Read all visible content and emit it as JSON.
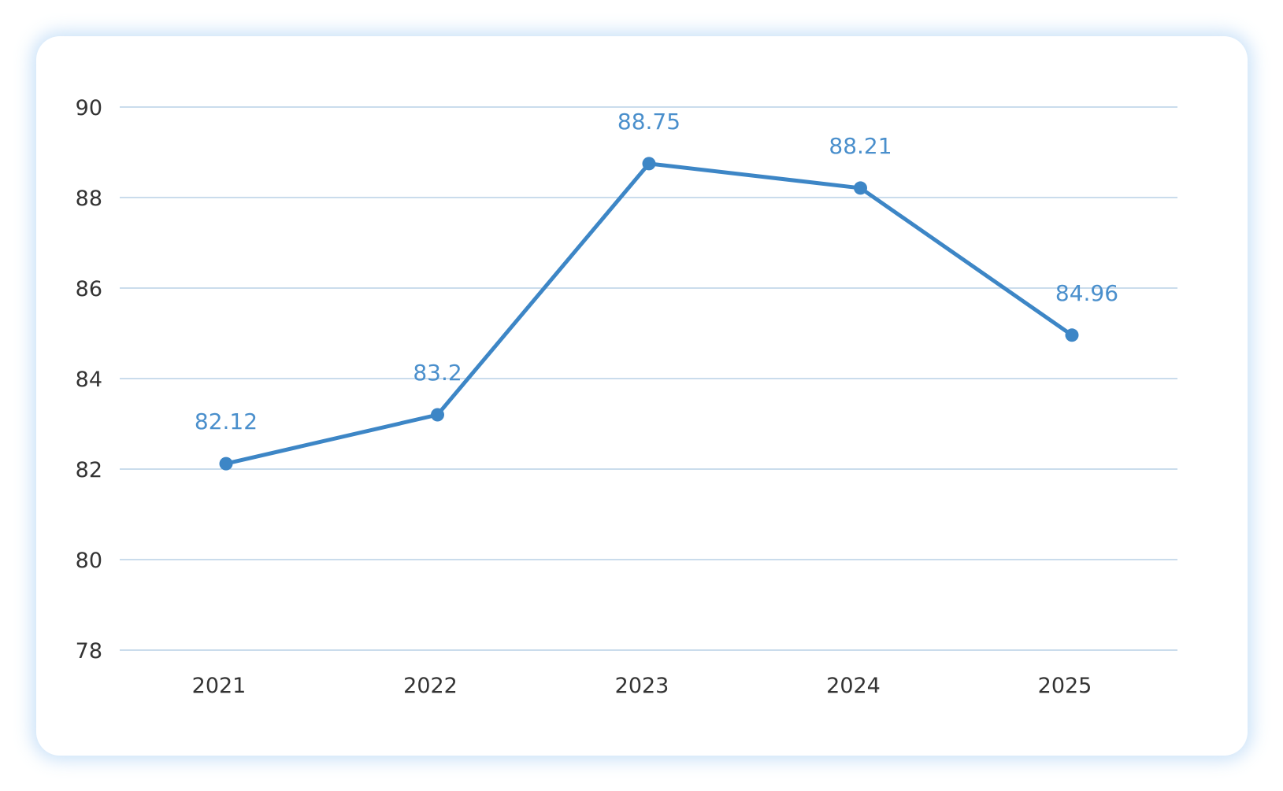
{
  "chart_data": {
    "type": "line",
    "categories": [
      "2021",
      "2022",
      "2023",
      "2024",
      "2025"
    ],
    "series": [
      {
        "values": [
          82.12,
          83.2,
          88.75,
          88.21,
          84.96
        ],
        "labels": [
          "82.12",
          "83.2",
          "88.75",
          "88.21",
          "84.96"
        ]
      }
    ],
    "ylim": [
      78,
      90
    ],
    "yticks": [
      "78",
      "80",
      "82",
      "84",
      "86",
      "88",
      "90"
    ],
    "grid": true,
    "colors": {
      "line": "#3d86c6",
      "label": "#4a8fcc",
      "grid": "#b8d0e6",
      "card_glow": "#8cbef0"
    }
  }
}
